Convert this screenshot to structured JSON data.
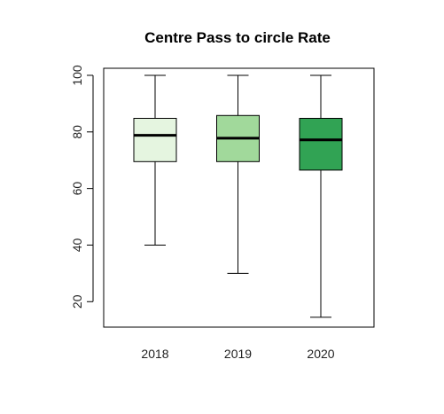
{
  "chart_data": {
    "type": "boxplot",
    "title": "Centre Pass to circle Rate",
    "xlabel": "",
    "ylabel": "",
    "categories": [
      "2018",
      "2019",
      "2020"
    ],
    "boxes": [
      {
        "category": "2018",
        "min": 40,
        "q1": 69.5,
        "median": 78.8,
        "q3": 84.8,
        "max": 100,
        "color": "#e5f5e0"
      },
      {
        "category": "2019",
        "min": 30,
        "q1": 69.5,
        "median": 77.8,
        "q3": 85.8,
        "max": 100,
        "color": "#a1d99b"
      },
      {
        "category": "2020",
        "min": 14.5,
        "q1": 66.5,
        "median": 77.2,
        "q3": 84.8,
        "max": 100,
        "color": "#31a354"
      }
    ],
    "y_ticks": [
      20,
      40,
      60,
      80,
      100
    ],
    "ylim": [
      11,
      102.5
    ],
    "grid": false,
    "legend": "none"
  }
}
